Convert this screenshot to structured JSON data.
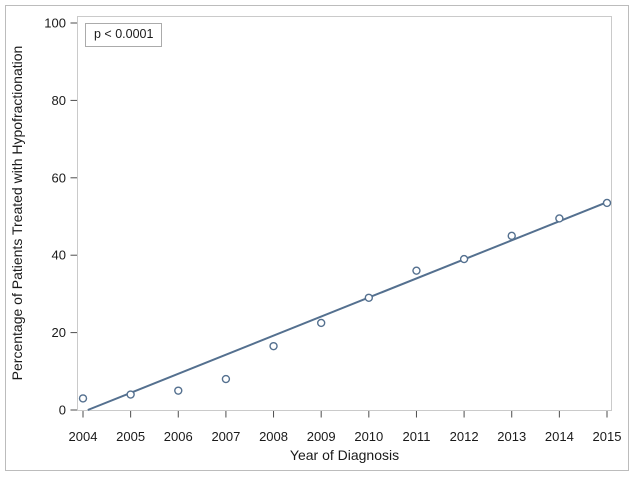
{
  "chart_data": {
    "type": "scatter",
    "title": "",
    "xlabel": "Year of Diagnosis",
    "ylabel": "Percentage of Patients Treated with Hypofractionation",
    "annotation": "p < 0.0001",
    "x": [
      2004,
      2005,
      2006,
      2007,
      2008,
      2009,
      2010,
      2011,
      2012,
      2013,
      2014,
      2015
    ],
    "y": [
      3,
      4,
      5,
      8,
      16.5,
      22.5,
      29,
      36,
      39,
      45,
      49.5,
      53.5
    ],
    "x_ticks": [
      2004,
      2005,
      2006,
      2007,
      2008,
      2009,
      2010,
      2011,
      2012,
      2013,
      2014,
      2015
    ],
    "y_ticks": [
      0,
      20,
      40,
      60,
      80,
      100
    ],
    "xlim": [
      2004,
      2015
    ],
    "ylim": [
      0,
      100
    ],
    "grid": false,
    "legend": "none",
    "marker": "open-circle",
    "trend_line": {
      "x_start": 2004.1,
      "y_start": 0,
      "x_end": 2015,
      "y_end": 53.7
    },
    "series_color": "#54708f"
  },
  "colors": {
    "background": "#ffffff",
    "outer_border": "#bcbcbc",
    "plot_frame": "#cacaca",
    "tick_mark": "#4d4d4d",
    "text": "#1a1a1a"
  }
}
